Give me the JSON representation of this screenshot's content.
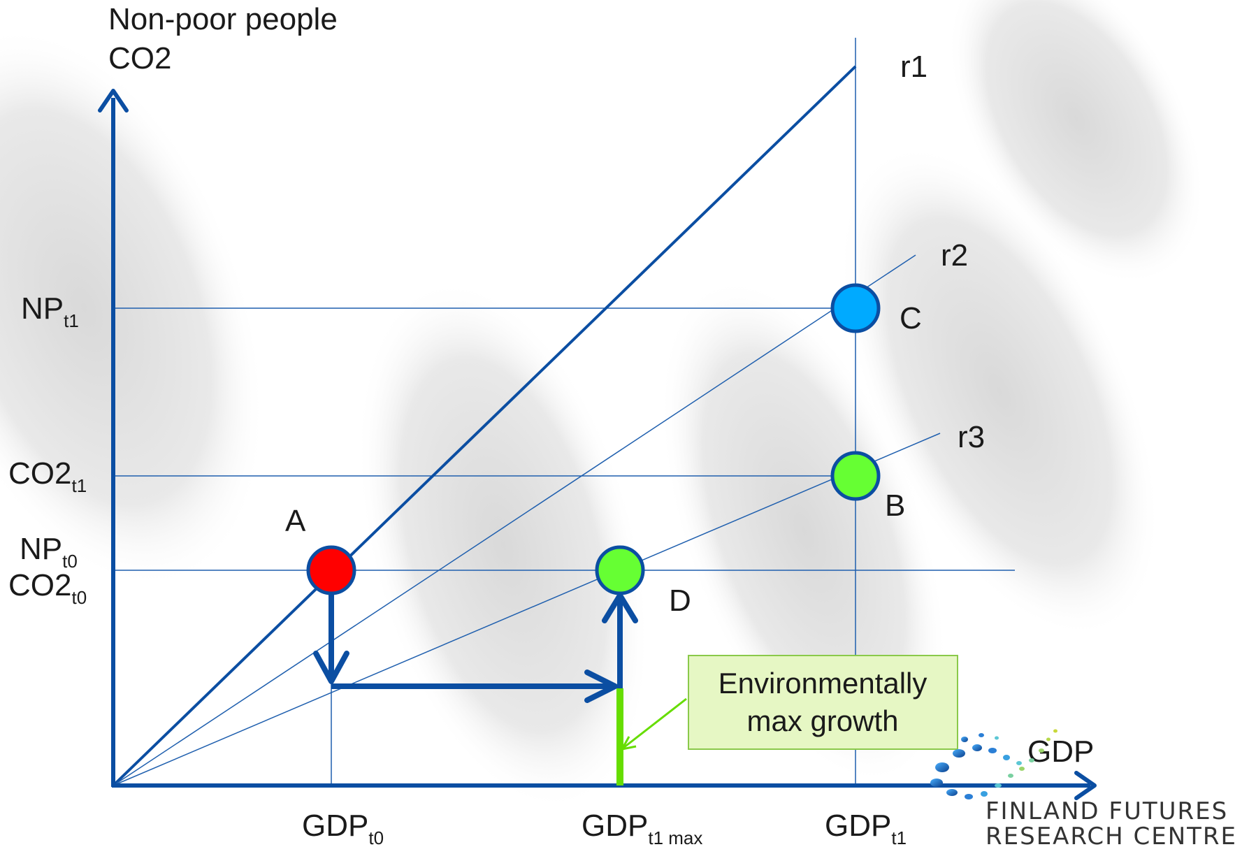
{
  "axes": {
    "y_title_line1": "Non-poor people",
    "y_title_line2": "CO2",
    "x_title": "GDP"
  },
  "rays": {
    "r1": "r1",
    "r2": "r2",
    "r3": "r3"
  },
  "y_labels": {
    "np_t1": {
      "main": "NP",
      "sub": "t1"
    },
    "co2_t1": {
      "main": "CO2",
      "sub": "t1"
    },
    "np_t0": {
      "main": "NP",
      "sub": "t0"
    },
    "co2_t0": {
      "main": "CO2",
      "sub": "t0"
    }
  },
  "x_labels": {
    "gdp_t0": {
      "main": "GDP",
      "sub": "t0"
    },
    "gdp_t1max": {
      "main": "GDP",
      "sub": "t1 max"
    },
    "gdp_t1": {
      "main": "GDP",
      "sub": "t1"
    }
  },
  "points": {
    "a": {
      "label": "A",
      "color": "#ff0000"
    },
    "b": {
      "label": "B",
      "color": "#66ff33"
    },
    "c": {
      "label": "C",
      "color": "#00aaff"
    },
    "d": {
      "label": "D",
      "color": "#66ff33"
    }
  },
  "callout": {
    "line1": "Environmentally",
    "line2": "max growth"
  },
  "logo": {
    "line1": "FINLAND FUTURES",
    "line2": "RESEARCH CENTRE"
  },
  "colors": {
    "axis": "#0b4ea2",
    "guide": "#1f5fae",
    "green_bar": "#66dd00",
    "callout_fill": "#e6f7c4",
    "callout_border": "#8ac94a"
  }
}
